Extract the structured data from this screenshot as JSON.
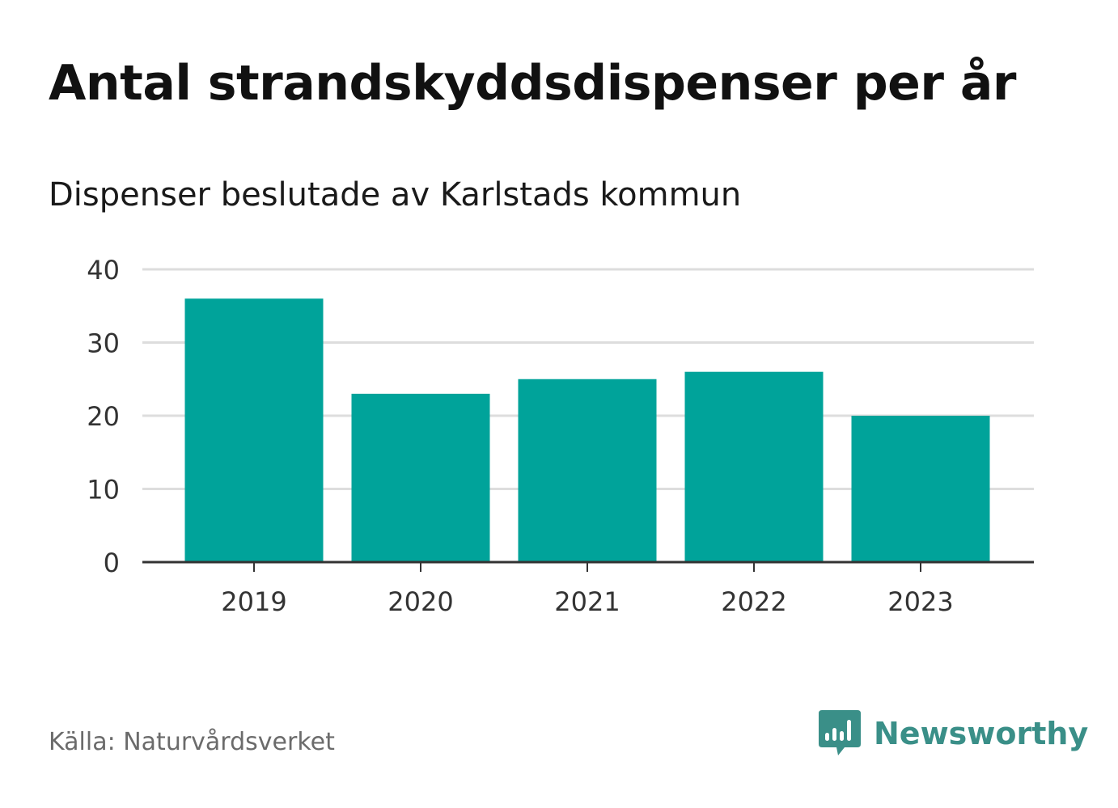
{
  "title": "Antal strandskyddsdispenser per år",
  "subtitle": "Dispenser beslutade av Karlstads kommun",
  "source": "Källa: Naturvårdsverket",
  "brand": {
    "name": "Newsworthy",
    "icon": "newsworthy-logo-icon"
  },
  "colors": {
    "bar": "#00A39A",
    "grid": "#dddddd",
    "axis": "#333333",
    "brand": "#3a8f88"
  },
  "chart_data": {
    "type": "bar",
    "title": "Antal strandskyddsdispenser per år",
    "subtitle": "Dispenser beslutade av Karlstads kommun",
    "categories": [
      "2019",
      "2020",
      "2021",
      "2022",
      "2023"
    ],
    "values": [
      36,
      23,
      25,
      26,
      20
    ],
    "yticks": [
      "0",
      "10",
      "20",
      "30",
      "40"
    ],
    "ylim": [
      0,
      40
    ],
    "xlabel": "",
    "ylabel": "",
    "grid": true,
    "legend": "none"
  }
}
